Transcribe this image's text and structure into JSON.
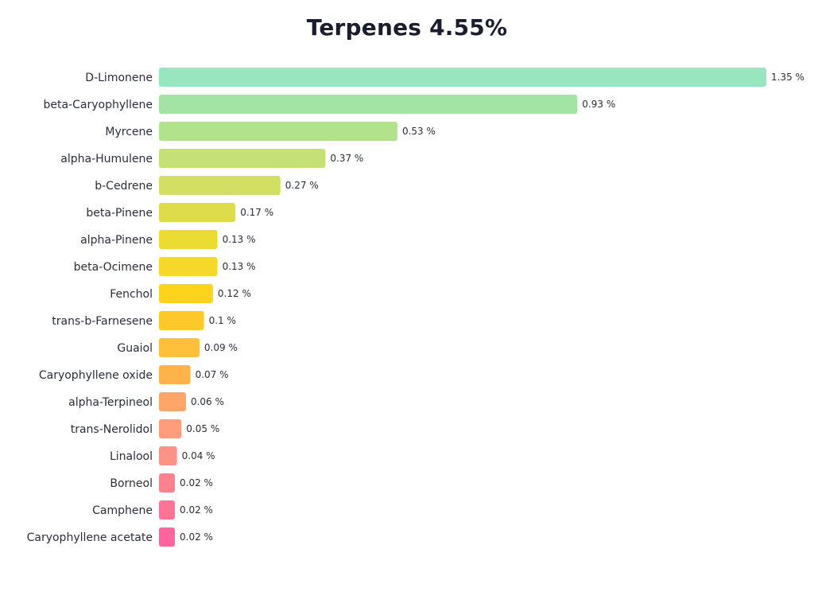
{
  "chart_data": {
    "type": "bar",
    "orientation": "horizontal",
    "title": "Terpenes 4.55%",
    "categories": [
      "D-Limonene",
      "beta-Caryophyllene",
      "Myrcene",
      "alpha-Humulene",
      "b-Cedrene",
      "beta-Pinene",
      "alpha-Pinene",
      "beta-Ocimene",
      "Fenchol",
      "trans-b-Farnesene",
      "Guaiol",
      "Caryophyllene oxide",
      "alpha-Terpineol",
      "trans-Nerolidol",
      "Linalool",
      "Borneol",
      "Camphene",
      "Caryophyllene acetate"
    ],
    "values": [
      1.35,
      0.93,
      0.53,
      0.37,
      0.27,
      0.17,
      0.13,
      0.13,
      0.12,
      0.1,
      0.09,
      0.07,
      0.06,
      0.05,
      0.04,
      0.02,
      0.02,
      0.02
    ],
    "value_labels": [
      "1.35 %",
      "0.93 %",
      "0.53 %",
      "0.37 %",
      "0.27 %",
      "0.17 %",
      "0.13 %",
      "0.13 %",
      "0.12 %",
      "0.1 %",
      "0.09 %",
      "0.07 %",
      "0.06 %",
      "0.05 %",
      "0.04 %",
      "0.02 %",
      "0.02 %",
      "0.02 %"
    ],
    "colors": [
      "#97e6c0",
      "#a3e4a5",
      "#b2e28b",
      "#c4e077",
      "#d3de64",
      "#dfdc4b",
      "#ebdb33",
      "#f6d82a",
      "#fdd41b",
      "#fdc92a",
      "#fec03b",
      "#feb24a",
      "#fea66a",
      "#fe9c7b",
      "#fd9286",
      "#fd828f",
      "#fd7496",
      "#fd659c"
    ],
    "xlim": [
      0,
      1.35
    ],
    "grid": false,
    "legend": "none"
  }
}
